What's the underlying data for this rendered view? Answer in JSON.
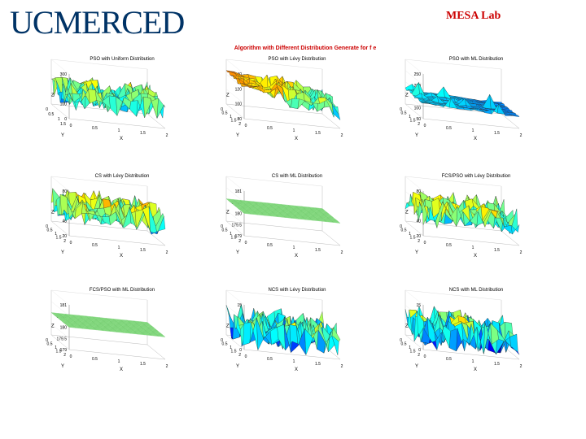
{
  "header": {
    "logo_text": "UCMERCED",
    "lab_name": "MESA Lab",
    "figure_title": "Algorithm with Different Distribution Generate for f e"
  },
  "chart_data": [
    {
      "type": "surface",
      "title": "PSO with Uniform Distribution",
      "zlabel": "Z",
      "xlabel": "X",
      "ylabel": "Y",
      "zlim": [
        0,
        300
      ],
      "zticks": [
        "0",
        "100",
        "200",
        "300"
      ],
      "yticks": [
        "0",
        "0.5",
        "1",
        "1.5"
      ],
      "xticks": [
        "0",
        "0.5",
        "1",
        "1.5",
        "2"
      ],
      "pattern": "spiky",
      "base": 0.45,
      "amp": 0.28,
      "colorscale": "jet"
    },
    {
      "type": "surface",
      "title": "PSO with Lévy Distribution",
      "zlabel": "Z",
      "xlabel": "X",
      "ylabel": "Y",
      "zlim": [
        80,
        140
      ],
      "zticks": [
        "80",
        "100",
        "120",
        "140"
      ],
      "yticks": [
        "0",
        "0.5",
        "1",
        "1.5",
        "2"
      ],
      "xticks": [
        "0",
        "0.5",
        "1",
        "1.5",
        "2"
      ],
      "pattern": "ramp",
      "base": 0.5,
      "amp": 0.4,
      "colorscale": "jet"
    },
    {
      "type": "surface",
      "title": "PSO with ML Distribution",
      "zlabel": "Z",
      "xlabel": "X",
      "ylabel": "Y",
      "zlim": [
        50,
        250
      ],
      "zticks": [
        "50",
        "100",
        "150",
        "200",
        "250"
      ],
      "yticks": [
        "0",
        "0.5",
        "1",
        "1.5",
        "2"
      ],
      "xticks": [
        "0",
        "0.5",
        "1",
        "1.5",
        "2"
      ],
      "pattern": "slope",
      "base": 0.25,
      "amp": 0.15,
      "colorscale": "jet"
    },
    {
      "type": "surface",
      "title": "CS with Lévy Distribution",
      "zlabel": "Z",
      "xlabel": "X",
      "ylabel": "Y",
      "zlim": [
        20,
        80
      ],
      "zticks": [
        "20",
        "40",
        "60",
        "80"
      ],
      "yticks": [
        "0",
        "0.5",
        "1",
        "1.5",
        "2"
      ],
      "xticks": [
        "0",
        "0.5",
        "1",
        "1.5",
        "2"
      ],
      "pattern": "spiky",
      "base": 0.5,
      "amp": 0.3,
      "colorscale": "jet"
    },
    {
      "type": "surface",
      "title": "CS with ML Distribution",
      "zlabel": "Z",
      "xlabel": "X",
      "ylabel": "Y",
      "zlim": [
        179,
        181
      ],
      "zticks": [
        "179",
        "179.5",
        "180",
        "180.5",
        "181"
      ],
      "yticks": [
        "0",
        "0.5",
        "1",
        "1.5",
        "2"
      ],
      "xticks": [
        "0",
        "0.5",
        "1",
        "1.5",
        "2"
      ],
      "pattern": "flat",
      "base": 0.5,
      "amp": 0,
      "colorscale": "green"
    },
    {
      "type": "surface",
      "title": "FCS/PSO with Lévy Distribution",
      "zlabel": "Z",
      "xlabel": "X",
      "ylabel": "Y",
      "zlim": [
        20,
        80
      ],
      "zticks": [
        "20",
        "40",
        "60",
        "80"
      ],
      "yticks": [
        "0",
        "0.5",
        "1",
        "1.5",
        "2"
      ],
      "xticks": [
        "0",
        "0.5",
        "1",
        "1.5",
        "2"
      ],
      "pattern": "spiky",
      "base": 0.5,
      "amp": 0.3,
      "colorscale": "jet"
    },
    {
      "type": "surface",
      "title": "FCS/PSO with ML Distribution",
      "zlabel": "Z",
      "xlabel": "X",
      "ylabel": "Y",
      "zlim": [
        179,
        181
      ],
      "zticks": [
        "179",
        "179.5",
        "180",
        "180.5",
        "181"
      ],
      "yticks": [
        "0",
        "0.5",
        "1",
        "1.5",
        "2"
      ],
      "xticks": [
        "0",
        "0.5",
        "1",
        "1.5",
        "2"
      ],
      "pattern": "flat",
      "base": 0.5,
      "amp": 0,
      "colorscale": "green"
    },
    {
      "type": "surface",
      "title": "NCS with Lévy Distribution",
      "zlabel": "Z",
      "xlabel": "X",
      "ylabel": "Y",
      "zlim": [
        0,
        15
      ],
      "zticks": [
        "0",
        "5",
        "10",
        "15"
      ],
      "yticks": [
        "0",
        "0.5",
        "1",
        "1.5",
        "2"
      ],
      "xticks": [
        "0",
        "0.5",
        "1",
        "1.5",
        "2"
      ],
      "pattern": "spiky",
      "base": 0.35,
      "amp": 0.4,
      "colorscale": "jet"
    },
    {
      "type": "surface",
      "title": "NCS with ML Distribution",
      "zlabel": "Z",
      "xlabel": "X",
      "ylabel": "Y",
      "zlim": [
        0,
        15
      ],
      "zticks": [
        "0",
        "5",
        "10",
        "15"
      ],
      "yticks": [
        "0",
        "0.5",
        "1",
        "1.5",
        "2"
      ],
      "xticks": [
        "0",
        "0.5",
        "1",
        "1.5",
        "2"
      ],
      "pattern": "spiky",
      "base": 0.35,
      "amp": 0.4,
      "colorscale": "jet"
    }
  ]
}
